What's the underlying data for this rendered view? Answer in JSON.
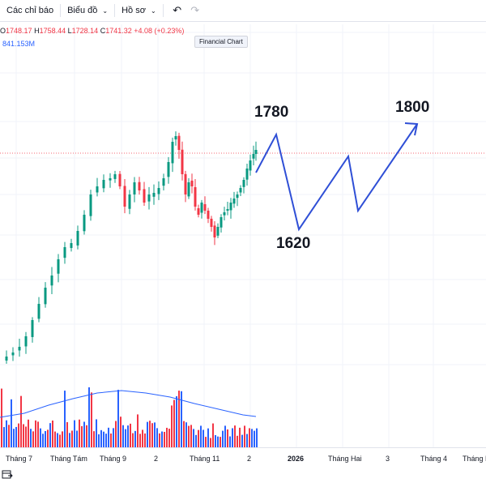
{
  "toolbar": {
    "indicators_label": "Các chỉ báo",
    "chart_label": "Biểu đồ",
    "profile_label": "Hồ sơ",
    "undo_icon": "undo-icon",
    "redo_icon": "redo-icon"
  },
  "legend": {
    "o_label": "O",
    "o_value": "1748.17",
    "h_label": "H",
    "h_value": "1758.44",
    "l_label": "L",
    "l_value": "1728.14",
    "c_label": "C",
    "c_value": "1741.32",
    "change": "+4.08 (+0.23%)",
    "volume": "841.153M"
  },
  "tooltip": "Financial Chart",
  "annotations": {
    "a1780": "1780",
    "a1620": "1620",
    "a1800": "1800"
  },
  "xaxis": {
    "labels": [
      "Tháng 7",
      "Tháng Tám",
      "Tháng 9",
      "2",
      "Tháng 11",
      "2",
      "2026",
      "Tháng Hai",
      "3",
      "Tháng 4",
      "Tháng Năm"
    ]
  },
  "colors": {
    "up": "#089981",
    "down": "#f23645",
    "vol_up": "#2962ff",
    "vol_down": "#f23645",
    "ma": "#2962ff",
    "projection": "#2f4fd6",
    "price_line": "#f23645"
  },
  "chart_data": {
    "type": "candlestick",
    "projection_points": [
      1741,
      1780,
      1620,
      1700,
      1640,
      1800
    ]
  }
}
